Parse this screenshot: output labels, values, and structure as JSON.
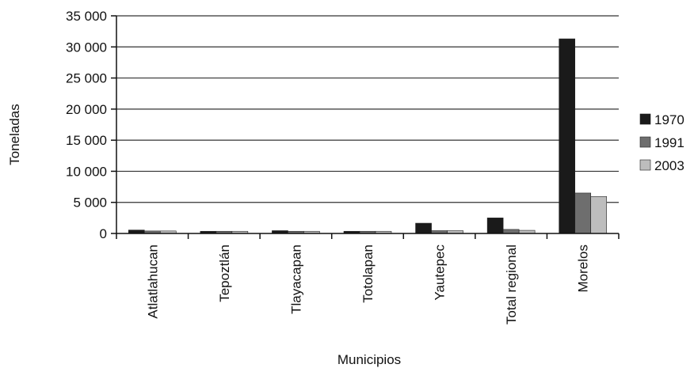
{
  "chart_data": {
    "type": "bar",
    "title": "",
    "xlabel": "Municipios",
    "ylabel": "Toneladas",
    "ylim": [
      0,
      35000
    ],
    "yticks": [
      0,
      5000,
      10000,
      15000,
      20000,
      25000,
      30000,
      35000
    ],
    "ytick_labels": [
      "0",
      "5 000",
      "10 000",
      "15 000",
      "20 000",
      "25 000",
      "30 000",
      "35 000"
    ],
    "categories": [
      "Atlatlahucan",
      "Tepoztlán",
      "Tlayacapan",
      "Totolapan",
      "Yautepec",
      "Total regional",
      "Morelos"
    ],
    "series": [
      {
        "name": "1970",
        "color": "#1a1a1a",
        "values": [
          550,
          350,
          450,
          350,
          1650,
          2500,
          31300
        ]
      },
      {
        "name": "1991",
        "color": "#6e6e6e",
        "values": [
          400,
          350,
          350,
          350,
          450,
          650,
          6500
        ]
      },
      {
        "name": "2003",
        "color": "#bdbdbd",
        "values": [
          400,
          350,
          350,
          350,
          450,
          500,
          5950
        ]
      }
    ],
    "grid": true,
    "legend_position": "right"
  }
}
